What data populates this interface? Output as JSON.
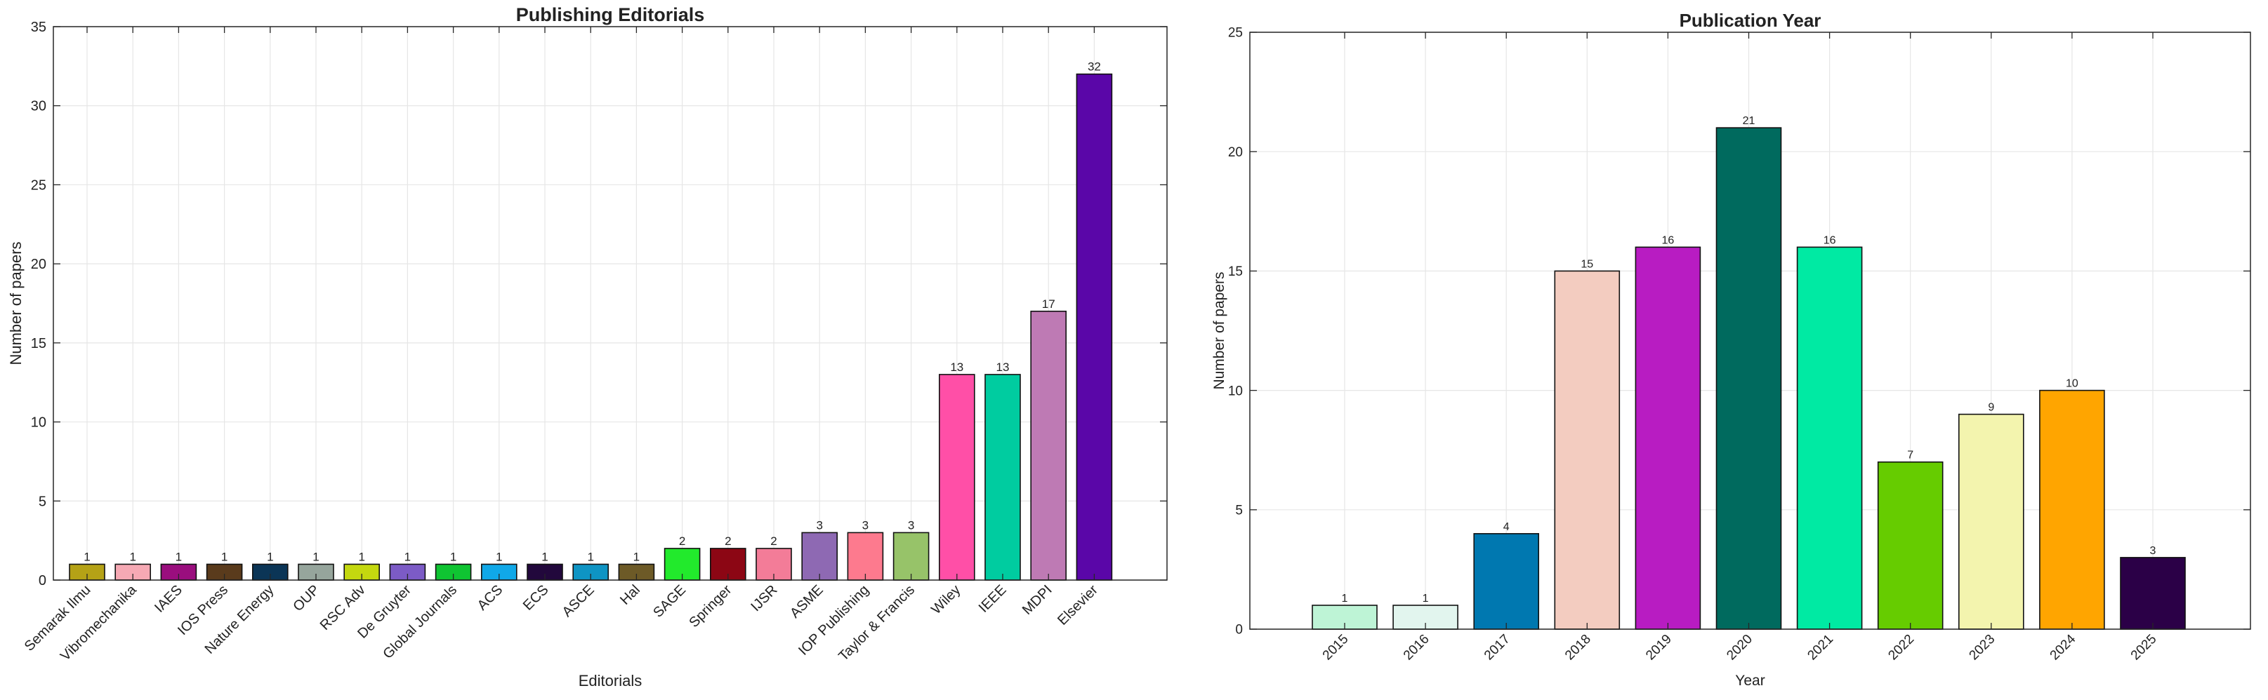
{
  "chart_data": [
    {
      "type": "bar",
      "title": "Publishing Editorials",
      "xlabel": "Editorials",
      "ylabel": "Number of papers",
      "ylim": [
        0,
        35
      ],
      "yticks": [
        0,
        5,
        10,
        15,
        20,
        25,
        30,
        35
      ],
      "grid": true,
      "categories": [
        "Semarak Ilmu",
        "Vibromechanika",
        "IAES",
        "IOS Press",
        "Nature Energy",
        "OUP",
        "RSC Adv",
        "De Gruyter",
        "Global Journals",
        "ACS",
        "ECS",
        "ASCE",
        "Hal",
        "SAGE",
        "Springer",
        "IJSR",
        "ASME",
        "IOP Publishing",
        "Taylor & Francis",
        "Wiley",
        "IEEE",
        "MDPI",
        "Elsevier"
      ],
      "values": [
        1,
        1,
        1,
        1,
        1,
        1,
        1,
        1,
        1,
        1,
        1,
        1,
        1,
        2,
        2,
        2,
        3,
        3,
        3,
        13,
        13,
        17,
        32
      ],
      "colors": [
        "#B5A216",
        "#F6A9B4",
        "#9A0E7E",
        "#5A3B1C",
        "#0B3556",
        "#96A59C",
        "#C4D80F",
        "#7C5BC6",
        "#0FC432",
        "#10A8E8",
        "#22083C",
        "#0E94C4",
        "#6D5A27",
        "#22EA2C",
        "#8C0614",
        "#F37C98",
        "#8E69B3",
        "#FD7A8E",
        "#97C369",
        "#FF4FA7",
        "#00CCA0",
        "#BE7AB4",
        "#5A06A8"
      ]
    },
    {
      "type": "bar",
      "title": "Publication Year",
      "xlabel": "Year",
      "ylabel": "Number of papers",
      "ylim": [
        0,
        25
      ],
      "yticks": [
        0,
        5,
        10,
        15,
        20,
        25
      ],
      "grid": true,
      "categories": [
        "2015",
        "2016",
        "2017",
        "2018",
        "2019",
        "2020",
        "2021",
        "2022",
        "2023",
        "2024",
        "2025"
      ],
      "values": [
        1,
        1,
        4,
        15,
        16,
        21,
        16,
        7,
        9,
        10,
        3
      ],
      "colors": [
        "#BEF4D6",
        "#E2F5EE",
        "#0078B0",
        "#F3CCC0",
        "#B81CC2",
        "#006A5E",
        "#00EAA3",
        "#66CC00",
        "#F3F4AE",
        "#FFA500",
        "#2B0047"
      ]
    }
  ]
}
